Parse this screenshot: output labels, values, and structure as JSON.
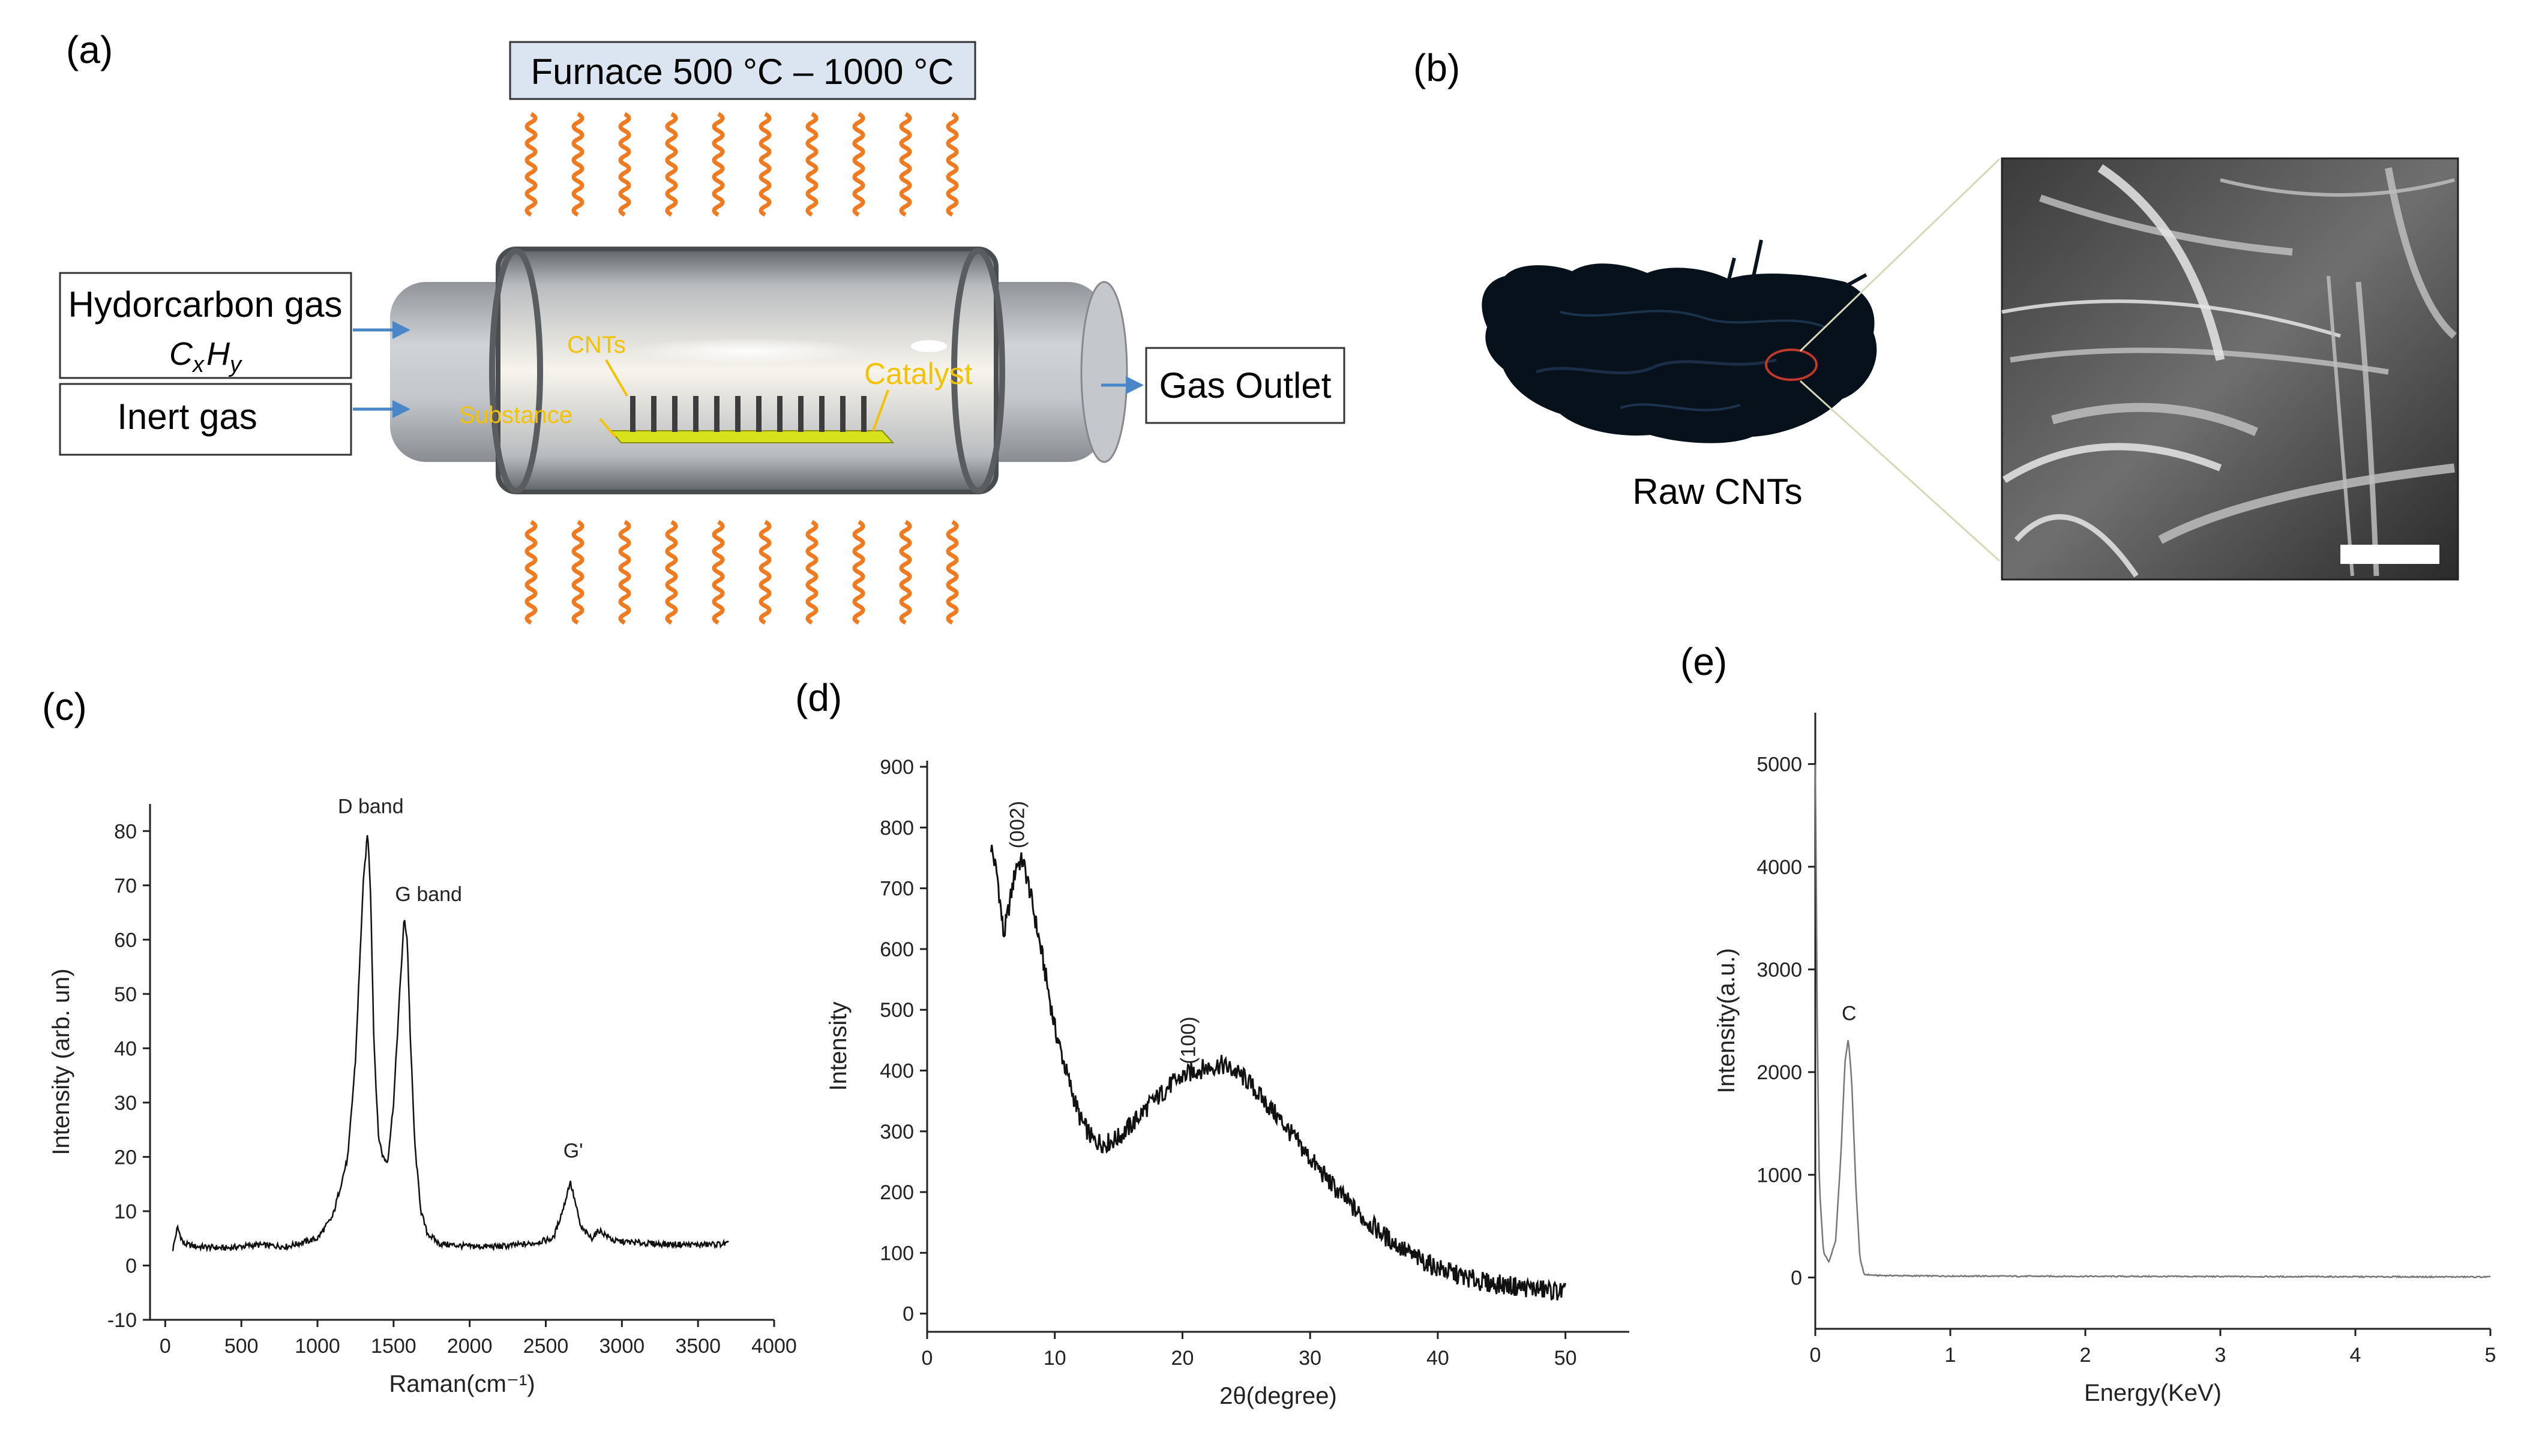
{
  "panel_a": {
    "label": "(a)",
    "furnace": "Furnace 500 °C – 1000 °C",
    "inlet_gas_1": "Hydorcarbon gas",
    "formula": {
      "base1": "C",
      "sub1": "x",
      "base2": "H",
      "sub2": "y"
    },
    "inlet_gas_2": "Inert gas",
    "outlet": "Gas Outlet",
    "label_cnts": "CNTs",
    "label_substance": "Substance",
    "label_catalyst": "Catalyst",
    "colors": {
      "flame": "#f07a1f",
      "furnace_box": "#dbe5f2",
      "callout": "#f3c200",
      "arrow": "#4a86c8"
    }
  },
  "panel_b": {
    "label": "(b)",
    "caption": "Raw CNTs"
  },
  "panel_c": {
    "label": "(c)",
    "peak_labels": {
      "d": "D band",
      "g": "G band",
      "g2": "G'"
    }
  },
  "panel_d": {
    "label": "(d)",
    "peak_labels": {
      "p002": "(002)",
      "p100": "(100)"
    }
  },
  "panel_e": {
    "label": "(e)",
    "peak_labels": {
      "c": "C"
    }
  },
  "chart_data": [
    {
      "id": "raman",
      "type": "line",
      "title": "",
      "xlabel": "Raman(cm⁻¹)",
      "ylabel": "Intensity (arb. un)",
      "xlim": [
        -100,
        4000
      ],
      "ylim": [
        -10,
        85
      ],
      "xticks": [
        0,
        500,
        1000,
        1500,
        2000,
        2500,
        3000,
        3500,
        4000
      ],
      "yticks": [
        -10,
        0,
        10,
        20,
        30,
        40,
        50,
        60,
        70,
        80
      ],
      "x": [
        50,
        80,
        120,
        200,
        400,
        600,
        800,
        1000,
        1100,
        1200,
        1250,
        1300,
        1330,
        1350,
        1370,
        1400,
        1430,
        1460,
        1500,
        1540,
        1570,
        1590,
        1610,
        1640,
        1680,
        1720,
        1800,
        2000,
        2200,
        2400,
        2550,
        2620,
        2660,
        2690,
        2730,
        2800,
        2850,
        2950,
        3200,
        3500,
        3700
      ],
      "y": [
        3,
        7,
        4,
        3.5,
        3.2,
        3.8,
        3.5,
        5,
        9,
        20,
        38,
        70,
        80,
        68,
        42,
        24,
        20,
        19,
        30,
        50,
        64,
        60,
        42,
        22,
        10,
        6,
        4,
        3.5,
        3.5,
        4,
        5,
        11,
        15.5,
        12,
        7,
        5,
        6.5,
        4.5,
        4,
        3.8,
        4
      ]
    },
    {
      "id": "xrd",
      "type": "line",
      "title": "",
      "xlabel": "2θ(degree)",
      "ylabel": "Intensity",
      "xlim": [
        0,
        55
      ],
      "ylim": [
        -30,
        910
      ],
      "xticks": [
        0,
        10,
        20,
        30,
        40,
        50
      ],
      "yticks": [
        0,
        100,
        200,
        300,
        400,
        500,
        600,
        700,
        800,
        900
      ],
      "x": [
        5,
        5.5,
        6,
        6.5,
        7,
        7.5,
        8,
        9,
        10,
        11,
        12,
        13,
        14,
        15,
        16,
        17,
        18,
        19,
        20,
        21,
        22,
        23,
        24,
        25,
        26,
        28,
        30,
        32,
        34,
        36,
        38,
        40,
        42,
        44,
        46,
        48,
        50
      ],
      "y": [
        770,
        720,
        620,
        680,
        740,
        745,
        700,
        590,
        470,
        390,
        320,
        285,
        280,
        290,
        310,
        335,
        355,
        375,
        390,
        400,
        405,
        410,
        400,
        385,
        360,
        310,
        255,
        205,
        160,
        125,
        95,
        75,
        60,
        50,
        45,
        40,
        35
      ]
    },
    {
      "id": "eds",
      "type": "line",
      "title": "",
      "xlabel": "Energy(KeV)",
      "ylabel": "Intensity(a.u.)",
      "xlim": [
        0,
        5
      ],
      "ylim": [
        -500,
        5500
      ],
      "xticks": [
        0,
        1,
        2,
        3,
        4,
        5
      ],
      "yticks": [
        0,
        1000,
        2000,
        3000,
        4000,
        5000
      ],
      "x": [
        0.0,
        0.005,
        0.015,
        0.03,
        0.06,
        0.1,
        0.15,
        0.19,
        0.22,
        0.245,
        0.27,
        0.3,
        0.33,
        0.36,
        0.45,
        0.8,
        1.5,
        2.5,
        3.5,
        4.5,
        5.0
      ],
      "y": [
        5000,
        4300,
        2400,
        900,
        250,
        150,
        350,
        1200,
        2100,
        2330,
        1900,
        900,
        200,
        30,
        20,
        15,
        12,
        10,
        8,
        6,
        5
      ]
    }
  ]
}
